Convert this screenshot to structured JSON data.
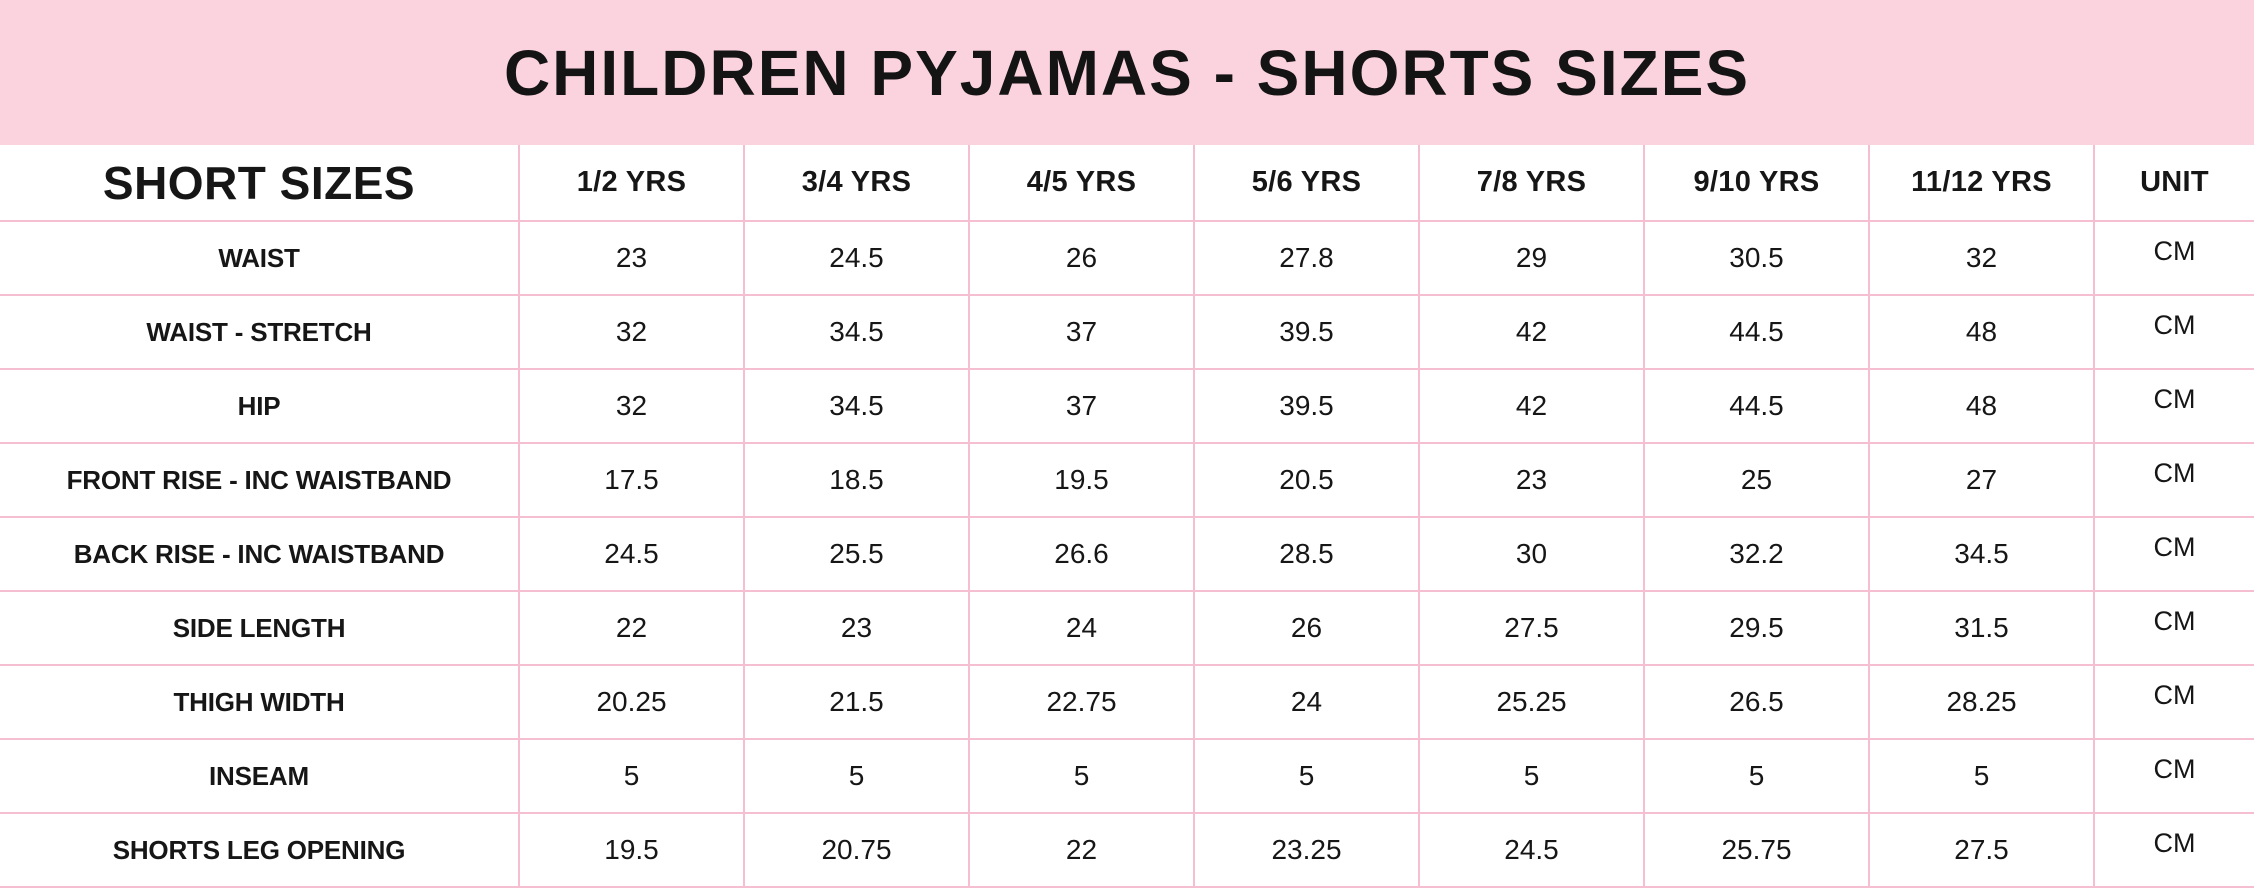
{
  "colors": {
    "banner": "#FBD3DF",
    "grid": "#F6BED1",
    "cell": "#FFFFFF",
    "text": "#161616"
  },
  "chart_data": {
    "type": "table",
    "title": "CHILDREN PYJAMAS - SHORTS SIZES",
    "columns": [
      "SHORT SIZES",
      "1/2 YRS",
      "3/4 YRS",
      "4/5 YRS",
      "5/6 YRS",
      "7/8 YRS",
      "9/10 YRS",
      "11/12 YRS",
      "UNIT"
    ],
    "rows": [
      {
        "label": "WAIST",
        "values": [
          23,
          24.5,
          26,
          27.8,
          29,
          30.5,
          32
        ],
        "unit": "CM"
      },
      {
        "label": "WAIST - STRETCH",
        "values": [
          32,
          34.5,
          37,
          39.5,
          42,
          44.5,
          48
        ],
        "unit": "CM"
      },
      {
        "label": "HIP",
        "values": [
          32,
          34.5,
          37,
          39.5,
          42,
          44.5,
          48
        ],
        "unit": "CM"
      },
      {
        "label": "FRONT RISE - INC WAISTBAND",
        "values": [
          17.5,
          18.5,
          19.5,
          20.5,
          23,
          25,
          27
        ],
        "unit": "CM"
      },
      {
        "label": "BACK RISE - INC WAISTBAND",
        "values": [
          24.5,
          25.5,
          26.6,
          28.5,
          30,
          32.2,
          34.5
        ],
        "unit": "CM"
      },
      {
        "label": "SIDE LENGTH",
        "values": [
          22,
          23,
          24,
          26,
          27.5,
          29.5,
          31.5
        ],
        "unit": "CM"
      },
      {
        "label": "THIGH WIDTH",
        "values": [
          20.25,
          21.5,
          22.75,
          24,
          25.25,
          26.5,
          28.25
        ],
        "unit": "CM"
      },
      {
        "label": "INSEAM",
        "values": [
          5,
          5,
          5,
          5,
          5,
          5,
          5
        ],
        "unit": "CM"
      },
      {
        "label": "SHORTS LEG OPENING",
        "values": [
          19.5,
          20.75,
          22,
          23.25,
          24.5,
          25.75,
          27.5
        ],
        "unit": "CM"
      }
    ]
  }
}
